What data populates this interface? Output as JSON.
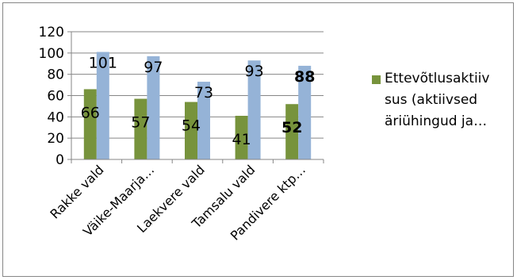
{
  "chart_data": {
    "type": "bar",
    "categories": [
      "Rakke vald",
      "Väike-Maarja…",
      "Laekvere vald",
      "Tamsalu vald",
      "Pandivere ktp…"
    ],
    "series": [
      {
        "name": "Ettevõtlusaktiivsus (aktiivsed äriühingud ja…",
        "color": "#77933c",
        "values": [
          66,
          57,
          54,
          41,
          52
        ],
        "labels": [
          "66",
          "57",
          "54",
          "41",
          "52"
        ]
      },
      {
        "color": "#95b3d7",
        "values": [
          101,
          97,
          73,
          93,
          88
        ],
        "labels": [
          "101",
          "97",
          "73",
          "93",
          "88"
        ]
      }
    ],
    "yticks": [
      "0",
      "20",
      "40",
      "60",
      "80",
      "100",
      "120"
    ],
    "ylim": [
      0,
      120
    ],
    "grid": true,
    "legend_position": "right",
    "legend": {
      "lines": [
        "Ettevõtlusaktiiv",
        "sus (aktiivsed",
        "äriühingud ja…"
      ]
    }
  }
}
